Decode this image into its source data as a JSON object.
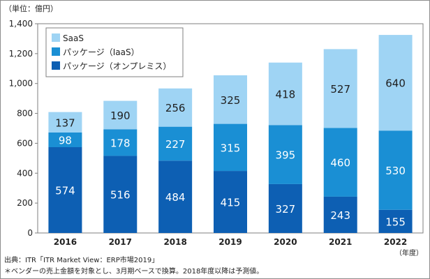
{
  "chart_data": {
    "type": "bar",
    "stacked": true,
    "unit_label": "（単位：億円）",
    "x_unit_label": "（年度）",
    "categories": [
      "2016",
      "2017",
      "2018",
      "2019",
      "2020",
      "2021",
      "2022"
    ],
    "series": [
      {
        "name": "パッケージ（オンプレミス）",
        "color": "#0d5fb3",
        "values": [
          574,
          516,
          484,
          415,
          327,
          243,
          155
        ]
      },
      {
        "name": "パッケージ（IaaS）",
        "color": "#1a8fd4",
        "values": [
          98,
          178,
          227,
          315,
          395,
          460,
          530
        ]
      },
      {
        "name": "SaaS",
        "color": "#9fd4f4",
        "values": [
          137,
          190,
          256,
          325,
          418,
          527,
          640
        ]
      }
    ],
    "legend_order": [
      "SaaS",
      "パッケージ（IaaS）",
      "パッケージ（オンプレミス）"
    ],
    "legend_position": "top-left",
    "ylim": [
      0,
      1400
    ],
    "yticks": [
      "0",
      "200",
      "400",
      "600",
      "800",
      "1,000",
      "1,200",
      "1,400"
    ],
    "grid": false,
    "source": "出典：ITR「ITR Market View：ERP市場2019」",
    "note": "＊ベンダーの売上金額を対象とし、3月期ベースで換算。2018年度以降は予測値。"
  }
}
